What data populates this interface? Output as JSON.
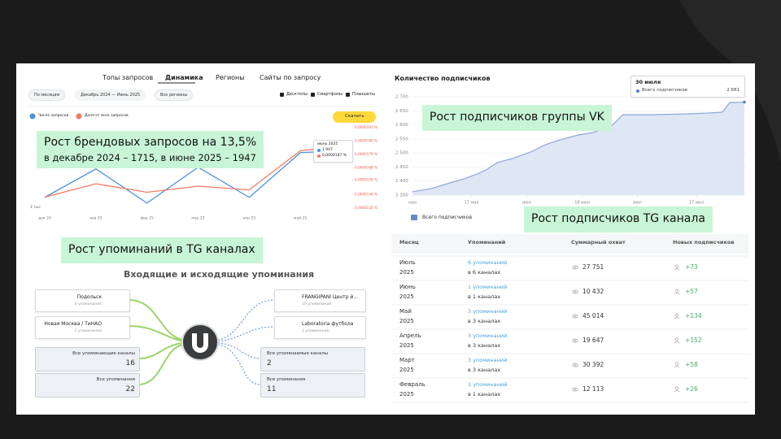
{
  "wordstat": {
    "tabs": [
      "Топы запросов",
      "Динамика",
      "Регионы",
      "Сайты по запросу"
    ],
    "filters": [
      "По месяцам",
      "Декабрь 2024 — Июнь 2025",
      "Все регионы"
    ],
    "devices": [
      "Десктопы",
      "Смартфоны",
      "Планшеты"
    ],
    "download": "Скачать",
    "left_axis_label": "2 тыс",
    "tooltip": {
      "title": "июнь 2025",
      "rows": [
        "1 947",
        "0,0000187 %"
      ]
    },
    "callout": [
      "Рост брендовых запросов на 13,5%",
      "в декабре 2024 – 1715, в июне 2025 – 1947"
    ]
  },
  "chart_data": [
    {
      "type": "line",
      "categories": [
        "дек 24",
        "янв 25",
        "фев 25",
        "мар 25",
        "апр 25",
        "май 25",
        null
      ],
      "ylim": [
        1650,
        2050
      ],
      "y2lim": [
        1.35e-05,
        2.01e-05
      ],
      "y2ticks": [
        {
          "value": 2.01e-05,
          "label": "0,0000201 %"
        },
        {
          "value": 1.9e-05,
          "label": "0,0000190 %"
        },
        {
          "value": 1.79e-05,
          "label": "0,0000179 %"
        },
        {
          "value": 1.68e-05,
          "label": "0,0000168 %"
        },
        {
          "value": 1.58e-05,
          "label": "0,0000158 %"
        },
        {
          "value": 1.46e-05,
          "label": "0,0000146 %"
        },
        {
          "value": 1.35e-05,
          "label": "0,0000135 %"
        }
      ],
      "series": [
        {
          "name": "Число запросов",
          "color": "#4a90e2",
          "values": [
            1715,
            1855,
            1687,
            1863,
            1715,
            1935,
            1947
          ]
        },
        {
          "name": "Доля от всех запросов",
          "color": "#f07a63",
          "axis": "y2",
          "values": [
            1.44e-05,
            1.55e-05,
            1.48e-05,
            1.53e-05,
            1.5e-05,
            1.82e-05,
            1.87e-05
          ]
        }
      ]
    },
    {
      "type": "area",
      "title": "Количество подписчиков",
      "x": [
        0,
        5,
        10,
        14,
        18,
        20,
        23,
        27,
        32,
        36,
        40,
        45,
        49,
        54,
        57,
        65,
        74,
        80,
        84,
        86,
        90
      ],
      "xlim": [
        0,
        90
      ],
      "xticks": [
        {
          "value": 0,
          "label": "мая"
        },
        {
          "value": 16,
          "label": "17 мая"
        },
        {
          "value": 31,
          "label": "июн"
        },
        {
          "value": 46,
          "label": "16 июн"
        },
        {
          "value": 61,
          "label": "июл"
        },
        {
          "value": 77,
          "label": "17 июл"
        }
      ],
      "ylim": [
        2350,
        2700
      ],
      "yticks": [
        {
          "value": 2350,
          "label": "2 350"
        },
        {
          "value": 2400,
          "label": "2 400"
        },
        {
          "value": 2450,
          "label": "2 450"
        },
        {
          "value": 2500,
          "label": "2 500"
        },
        {
          "value": 2550,
          "label": "2 550"
        },
        {
          "value": 2600,
          "label": "2 600"
        },
        {
          "value": 2650,
          "label": "2 650"
        },
        {
          "value": 2700,
          "label": "2 700"
        }
      ],
      "grid": true,
      "series": [
        {
          "name": "Всего подписчиков",
          "color": "#8ea6da",
          "values": [
            2362,
            2373,
            2393,
            2408,
            2428,
            2440,
            2466,
            2480,
            2503,
            2529,
            2547,
            2564,
            2573,
            2596,
            2636,
            2636,
            2639,
            2642,
            2645,
            2679,
            2681
          ]
        }
      ]
    }
  ],
  "vk": {
    "callout": "Рост подписчиков группы VK",
    "tooltip": {
      "date": "30 июля",
      "value": "2 681"
    }
  },
  "mentions": {
    "callout": "Рост упоминаний в TG каналах",
    "title": "Входящие и исходящие упоминания",
    "incoming": [
      {
        "name": "Подольск",
        "count": "4 упоминания"
      },
      {
        "name": "Новая Москва / ТиНАО",
        "count": "2 упоминания"
      }
    ],
    "incoming_totals": [
      {
        "label": "Все упоминающие каналы",
        "value": 16
      },
      {
        "label": "Все упоминания",
        "value": 22
      }
    ],
    "outgoing": [
      {
        "name": "FRANGIPANI Центр й...",
        "count": "10 упоминаний"
      },
      {
        "name": "Laboratoria футбола",
        "count": "1 упоминания"
      }
    ],
    "outgoing_totals": [
      {
        "label": "Все упомянаемые каналы",
        "value": 2
      },
      {
        "label": "Все упоминания",
        "value": 11
      }
    ]
  },
  "tg_table": {
    "callout": "Рост подписчиков TG канала",
    "headers": [
      "Месяц",
      "Упоминаний",
      "Суммарный охват",
      "Новых подписчиков"
    ],
    "rows": [
      {
        "month": "Июль",
        "year": "2025",
        "mentions": "6 упоминаний",
        "channels": "в 6 каналах",
        "reach": "27 751",
        "subscribers": "+73"
      },
      {
        "month": "Июнь",
        "year": "2025",
        "mentions": "1 упоминаний",
        "channels": "в 1 каналах",
        "reach": "10 432",
        "subscribers": "+57"
      },
      {
        "month": "Май",
        "year": "2025",
        "mentions": "3 упоминаний",
        "channels": "в 3 каналах",
        "reach": "45 014",
        "subscribers": "+134"
      },
      {
        "month": "Апрель",
        "year": "2025",
        "mentions": "3 упоминаний",
        "channels": "в 3 каналах",
        "reach": "19 647",
        "subscribers": "+152"
      },
      {
        "month": "Март",
        "year": "2025",
        "mentions": "3 упоминаний",
        "channels": "в 3 каналах",
        "reach": "30 392",
        "subscribers": "+58"
      },
      {
        "month": "Февраль",
        "year": "2025",
        "mentions": "1 упоминаний",
        "channels": "в 1 каналах",
        "reach": "12 113",
        "subscribers": "+26"
      }
    ]
  }
}
